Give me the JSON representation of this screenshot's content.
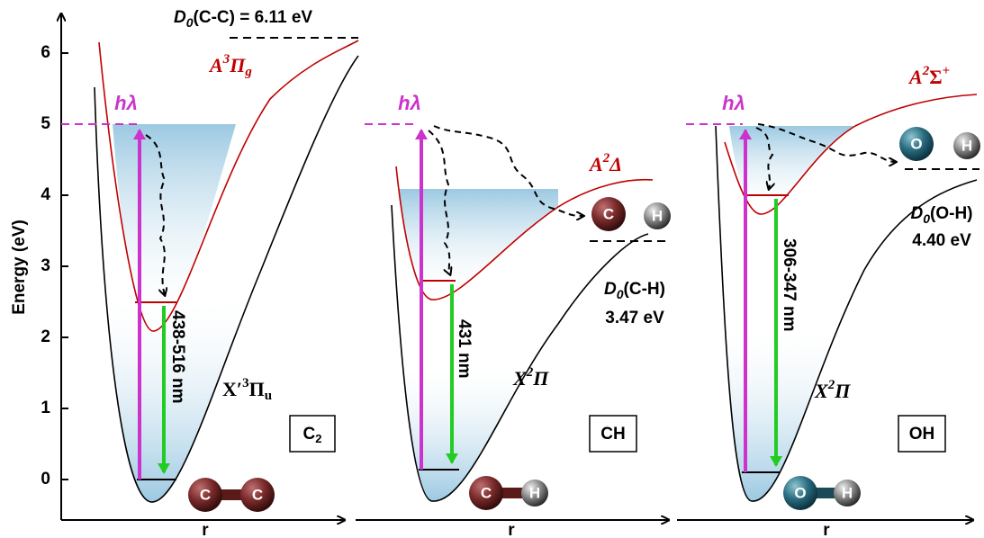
{
  "y_axis": {
    "label": "Energy (eV)",
    "ticks": [
      0,
      1,
      2,
      3,
      4,
      5,
      6
    ]
  },
  "panels": [
    {
      "x_label": "r",
      "excitation": "hλ",
      "emission": "438-516 nm",
      "upper_state": {
        "letter": "A",
        "sup": "3",
        "symbol": "Π",
        "sub": "g"
      },
      "ground_state": {
        "letter": "X′",
        "sup": "3",
        "symbol": "Π",
        "sub": "u"
      },
      "box": {
        "main": "C",
        "sub": "2"
      },
      "bound_atoms": [
        "C",
        "C"
      ],
      "dissociation": {
        "label": "D",
        "sub": "0",
        "rest": "(C-C) = 6.11 eV"
      }
    },
    {
      "x_label": "r",
      "excitation": "hλ",
      "emission": "431 nm",
      "upper_state": {
        "letter": "A",
        "sup": "2",
        "symbol": "Δ"
      },
      "ground_state": {
        "letter": "X",
        "sup": "2",
        "symbol": "Π"
      },
      "box": {
        "main": "CH"
      },
      "bound_atoms": [
        "C",
        "H"
      ],
      "fragments": [
        "C",
        "H"
      ],
      "dissociation": {
        "label": "D",
        "sub": "0",
        "rest": "(C-H)",
        "energy": "3.47 eV"
      }
    },
    {
      "x_label": "r",
      "excitation": "hλ",
      "emission": "306-347 nm",
      "upper_state": {
        "letter": "A",
        "sup": "2",
        "symbol": "Σ",
        "symbol_sup": "+"
      },
      "ground_state": {
        "letter": "X",
        "sup": "2",
        "symbol": "Π"
      },
      "box": {
        "main": "OH"
      },
      "bound_atoms": [
        "O",
        "H"
      ],
      "fragments": [
        "O",
        "H"
      ],
      "dissociation": {
        "label": "D",
        "sub": "0",
        "rest": "(O-H)",
        "energy": "4.40 eV"
      }
    }
  ]
}
